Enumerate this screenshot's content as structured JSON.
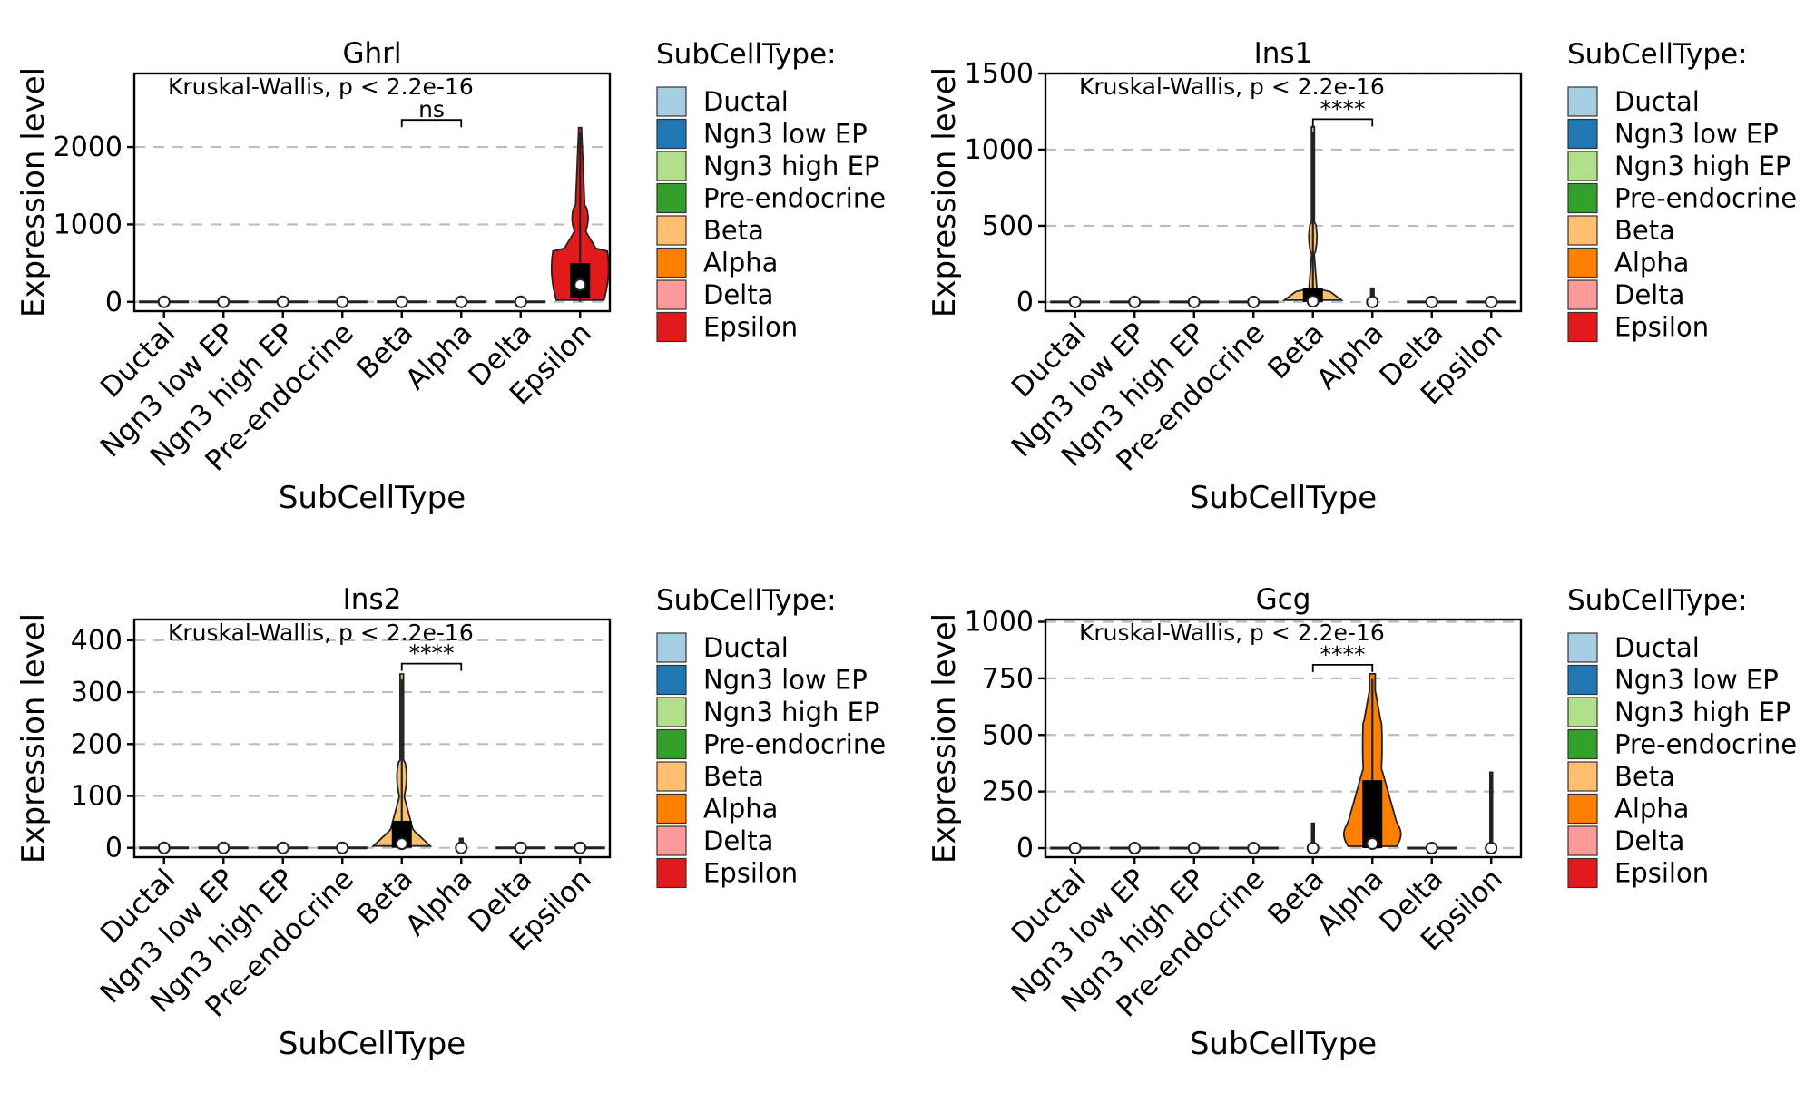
{
  "legend": {
    "title": "SubCellType:",
    "entries": [
      "Ductal",
      "Ngn3 low EP",
      "Ngn3 high EP",
      "Pre-endocrine",
      "Beta",
      "Alpha",
      "Delta",
      "Epsilon"
    ]
  },
  "colors": [
    "#a6cee3",
    "#1f78b4",
    "#b2df8a",
    "#33a02c",
    "#fdbf6f",
    "#ff7f00",
    "#fb9a99",
    "#e31a1c"
  ],
  "chart_data": [
    {
      "type": "violin",
      "title": "Ghrl",
      "xlabel": "SubCellType",
      "ylabel": "Expression level",
      "categories": [
        "Ductal",
        "Ngn3 low EP",
        "Ngn3 high EP",
        "Pre-endocrine",
        "Beta",
        "Alpha",
        "Delta",
        "Epsilon"
      ],
      "yticks": [
        0,
        1000,
        2000
      ],
      "ytick_labels": [
        "0",
        "1000",
        "2000"
      ],
      "ylim": [
        -120,
        2950
      ],
      "grid": "horizontal dashed",
      "annotation": "Kruskal-Wallis, p < 2.2e-16",
      "comparison": {
        "groups": [
          "Beta",
          "Alpha"
        ],
        "label": "ns",
        "y": 2350
      },
      "medians": [
        0,
        0,
        0,
        0,
        0,
        0,
        0,
        220
      ],
      "iqr": [
        [
          0,
          0
        ],
        [
          0,
          0
        ],
        [
          0,
          0
        ],
        [
          0,
          0
        ],
        [
          0,
          0
        ],
        [
          0,
          0
        ],
        [
          0,
          0
        ],
        [
          50,
          500
        ]
      ],
      "max": [
        0,
        0,
        0,
        0,
        0,
        0,
        0,
        2250
      ]
    },
    {
      "type": "violin",
      "title": "Ins1",
      "xlabel": "SubCellType",
      "ylabel": "Expression level",
      "categories": [
        "Ductal",
        "Ngn3 low EP",
        "Ngn3 high EP",
        "Pre-endocrine",
        "Beta",
        "Alpha",
        "Delta",
        "Epsilon"
      ],
      "yticks": [
        0,
        500,
        1000,
        1500
      ],
      "ytick_labels": [
        "0",
        "500",
        "1000",
        "1500"
      ],
      "ylim": [
        -60,
        1500
      ],
      "grid": "horizontal dashed",
      "annotation": "Kruskal-Wallis, p < 2.2e-16",
      "comparison": {
        "groups": [
          "Beta",
          "Alpha"
        ],
        "label": "****",
        "y": 1200
      },
      "medians": [
        0,
        0,
        0,
        0,
        5,
        0,
        0,
        0
      ],
      "iqr": [
        [
          0,
          0
        ],
        [
          0,
          0
        ],
        [
          0,
          0
        ],
        [
          0,
          0
        ],
        [
          0,
          90
        ],
        [
          0,
          0
        ],
        [
          0,
          0
        ],
        [
          0,
          0
        ]
      ],
      "max": [
        0,
        0,
        0,
        0,
        1150,
        90,
        0,
        0
      ]
    },
    {
      "type": "violin",
      "title": "Ins2",
      "xlabel": "SubCellType",
      "ylabel": "Expression level",
      "categories": [
        "Ductal",
        "Ngn3 low EP",
        "Ngn3 high EP",
        "Pre-endocrine",
        "Beta",
        "Alpha",
        "Delta",
        "Epsilon"
      ],
      "yticks": [
        0,
        100,
        200,
        300,
        400
      ],
      "ytick_labels": [
        "0",
        "100",
        "200",
        "300",
        "400"
      ],
      "ylim": [
        -18,
        440
      ],
      "grid": "horizontal dashed",
      "annotation": "Kruskal-Wallis, p < 2.2e-16",
      "comparison": {
        "groups": [
          "Beta",
          "Alpha"
        ],
        "label": "****",
        "y": 355
      },
      "medians": [
        0,
        0,
        0,
        0,
        8,
        0,
        0,
        0
      ],
      "iqr": [
        [
          0,
          0
        ],
        [
          0,
          0
        ],
        [
          0,
          0
        ],
        [
          0,
          0
        ],
        [
          0,
          52
        ],
        [
          0,
          0
        ],
        [
          0,
          0
        ],
        [
          0,
          0
        ]
      ],
      "max": [
        0,
        0,
        0,
        0,
        335,
        18,
        0,
        0
      ]
    },
    {
      "type": "violin",
      "title": "Gcg",
      "xlabel": "SubCellType",
      "ylabel": "Expression level",
      "categories": [
        "Ductal",
        "Ngn3 low EP",
        "Ngn3 high EP",
        "Pre-endocrine",
        "Beta",
        "Alpha",
        "Delta",
        "Epsilon"
      ],
      "yticks": [
        0,
        250,
        500,
        750,
        1000
      ],
      "ytick_labels": [
        "0",
        "250",
        "500",
        "750",
        "1000"
      ],
      "ylim": [
        -40,
        1010
      ],
      "grid": "horizontal dashed",
      "annotation": "Kruskal-Wallis, p < 2.2e-16",
      "comparison": {
        "groups": [
          "Beta",
          "Alpha"
        ],
        "label": "****",
        "y": 810
      },
      "medians": [
        0,
        0,
        0,
        0,
        0,
        20,
        0,
        0
      ],
      "iqr": [
        [
          0,
          0
        ],
        [
          0,
          0
        ],
        [
          0,
          0
        ],
        [
          0,
          0
        ],
        [
          0,
          0
        ],
        [
          0,
          300
        ],
        [
          0,
          0
        ],
        [
          0,
          0
        ]
      ],
      "max": [
        0,
        0,
        0,
        0,
        110,
        770,
        0,
        335
      ]
    }
  ]
}
